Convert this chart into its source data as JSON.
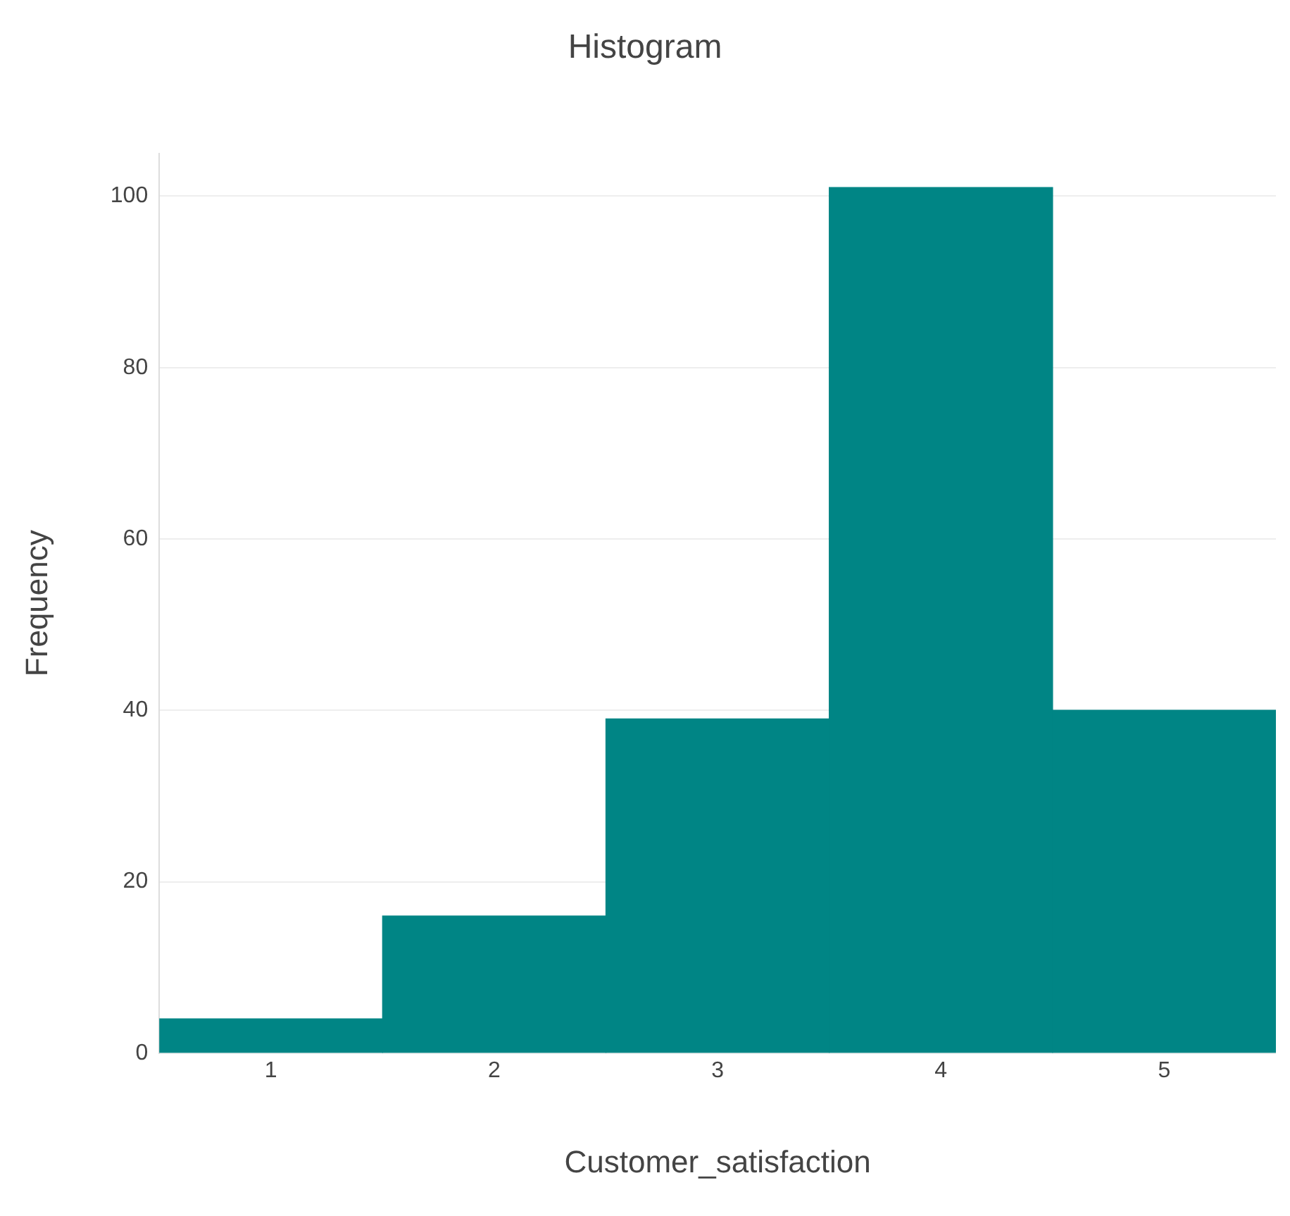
{
  "chart_data": {
    "type": "histogram",
    "title": "Histogram",
    "xlabel": "Customer_satisfaction",
    "ylabel": "Frequency",
    "bins": [
      0.5,
      1.5,
      2.5,
      3.5,
      4.5,
      5.5
    ],
    "values": [
      4,
      16,
      39,
      101,
      40
    ],
    "color": "#008585",
    "xlim": [
      0.5,
      5.5
    ],
    "xticks": [
      1,
      2,
      3,
      4,
      5
    ],
    "ylim": [
      0,
      105
    ],
    "yticks": [
      0,
      20,
      40,
      60,
      80,
      100
    ],
    "grid": "y",
    "legend": false
  }
}
